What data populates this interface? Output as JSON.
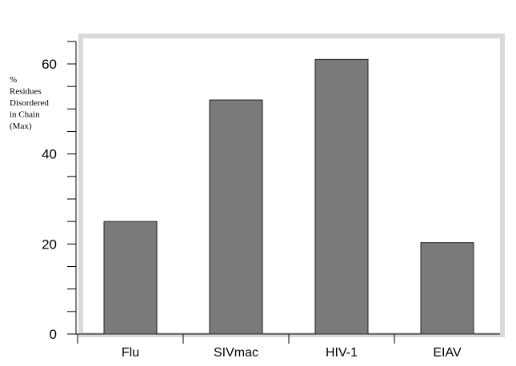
{
  "chart_data": {
    "type": "bar",
    "categories": [
      "Flu",
      "SIVmac",
      "HIV-1",
      "EIAV"
    ],
    "values": [
      25,
      52,
      61,
      20.3
    ],
    "ylabel_lines": [
      "%",
      "Residues",
      "Disordered",
      "in Chain",
      "(Max)"
    ],
    "ylim": [
      0,
      60
    ],
    "yticks": [
      "0",
      "20",
      "40",
      "60"
    ],
    "grid": false,
    "colors": {
      "bar": "#7a7a7a",
      "bar_stroke": "#222222",
      "frame": "#d9d9d9",
      "axis": "#000000"
    }
  }
}
